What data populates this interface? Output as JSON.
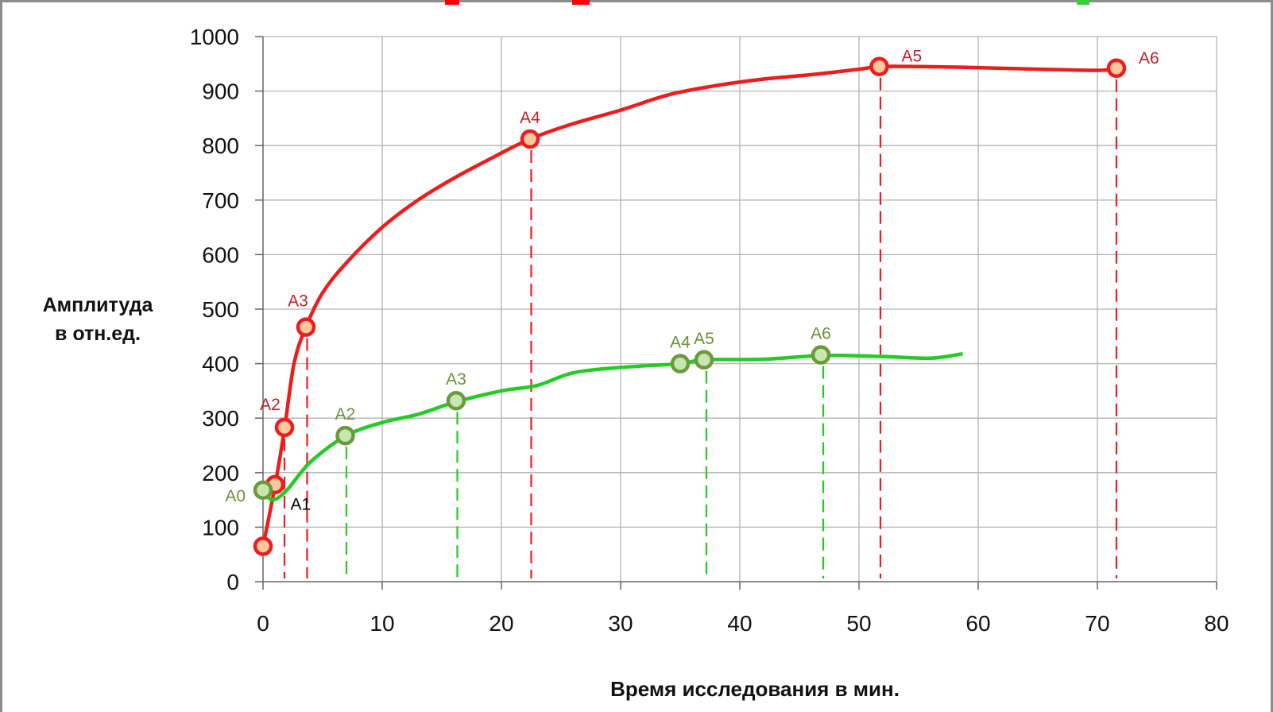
{
  "ylabel": [
    "Амплитуда",
    "в отн.ед."
  ],
  "xlabel": "Время исследования в мин.",
  "colors": {
    "red": "#ee1c1c",
    "green": "#22cc22",
    "red_marker_fill": "#fbc8a0",
    "green_marker_fill": "#c8e6b0",
    "green_label": "#6b8f3a",
    "red_label": "#c0202a",
    "grid": "#b3b3b3"
  },
  "chart_data": {
    "type": "line",
    "title": "",
    "xlabel": "Время исследования в мин.",
    "ylabel": "Амплитуда в отн.ед.",
    "xlim": [
      0,
      80
    ],
    "ylim": [
      0,
      1000
    ],
    "xticks": [
      0,
      10,
      20,
      30,
      40,
      50,
      60,
      70,
      80
    ],
    "yticks": [
      0,
      100,
      200,
      300,
      400,
      500,
      600,
      700,
      800,
      900,
      1000
    ],
    "grid": true,
    "series": [
      {
        "color": "red",
        "x": [
          0,
          1,
          1.8,
          2.6,
          3.6,
          5,
          7,
          10,
          13,
          16,
          19,
          22.4,
          26,
          30,
          34,
          38,
          42,
          46,
          50,
          51.7,
          55,
          60,
          65,
          70,
          71.5
        ],
        "y": [
          65,
          175,
          280,
          400,
          467,
          530,
          585,
          650,
          700,
          740,
          775,
          812,
          840,
          865,
          893,
          910,
          922,
          930,
          940,
          945,
          945,
          943,
          940,
          938,
          940
        ],
        "points": [
          {
            "label": "",
            "x": 0,
            "y": 65
          },
          {
            "label": "",
            "x": 1,
            "y": 178
          },
          {
            "label": "A2",
            "x": 1.8,
            "y": 283
          },
          {
            "label": "A3",
            "x": 3.6,
            "y": 467
          },
          {
            "label": "A4",
            "x": 22.4,
            "y": 812
          },
          {
            "label": "A5",
            "x": 51.7,
            "y": 945
          },
          {
            "label": "A6",
            "x": 71.6,
            "y": 942
          }
        ],
        "dropline_x": [
          1.8,
          3.7,
          22.5,
          51.8,
          71.6
        ]
      },
      {
        "color": "green",
        "x": [
          0,
          0.8,
          2,
          4,
          7,
          10,
          13,
          16.2,
          20,
          23,
          26,
          30,
          35,
          37,
          42,
          47,
          52,
          56,
          58.7
        ],
        "y": [
          168,
          150,
          168,
          220,
          268,
          292,
          307,
          330,
          350,
          360,
          383,
          393,
          400,
          407,
          408,
          415,
          413,
          410,
          418
        ],
        "points": [
          {
            "label": "A0",
            "x": 0,
            "y": 168
          },
          {
            "label": "A2",
            "x": 6.9,
            "y": 268
          },
          {
            "label": "A3",
            "x": 16.2,
            "y": 332
          },
          {
            "label": "A4",
            "x": 35,
            "y": 400
          },
          {
            "label": "A5",
            "x": 37,
            "y": 407
          },
          {
            "label": "A6",
            "x": 46.8,
            "y": 416
          }
        ],
        "dropline_x": [
          7,
          16.3,
          37.2,
          47
        ]
      }
    ],
    "annotations": [
      {
        "text": "A1",
        "color": "black",
        "x": 2.3,
        "y": 132
      }
    ]
  }
}
